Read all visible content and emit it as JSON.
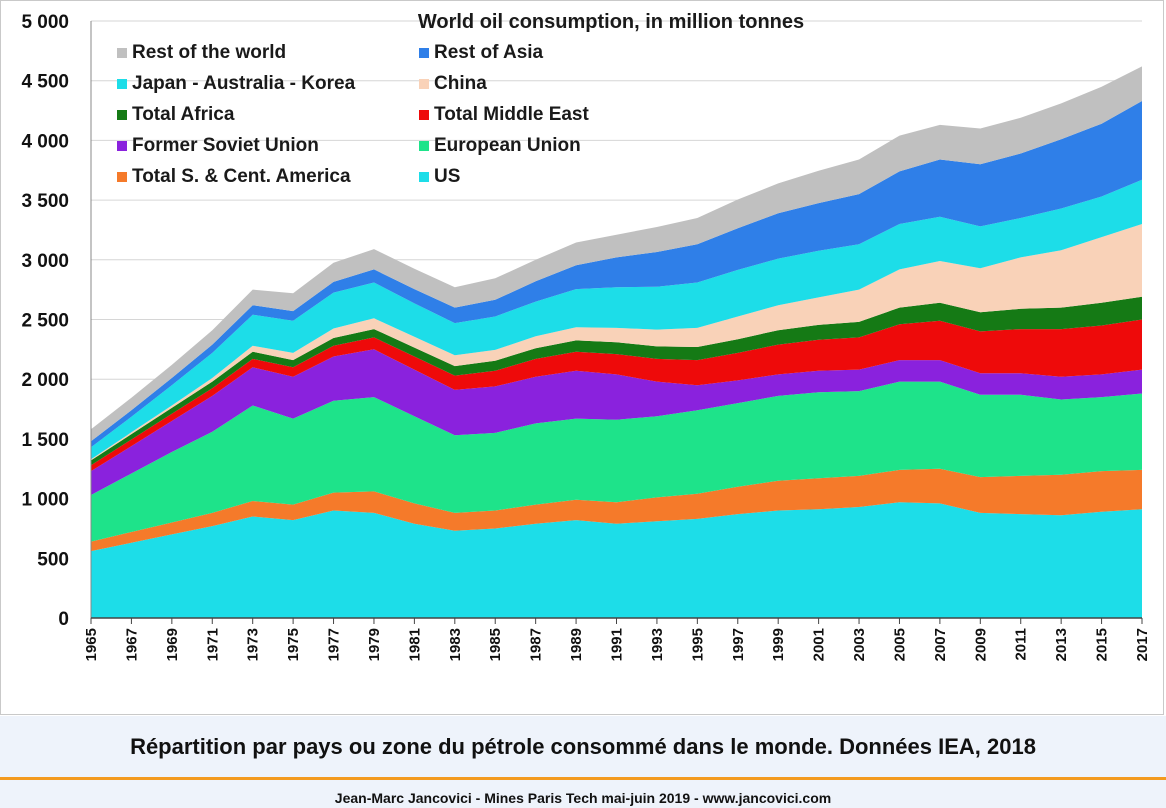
{
  "caption": "Répartition par pays ou zone du pétrole consommé dans le monde. Données IEA, 2018",
  "footer": "Jean-Marc Jancovici - Mines Paris Tech mai-juin 2019 - www.jancovici.com",
  "accent_color": "#f39a1e",
  "chart_data": {
    "type": "area",
    "stacked": true,
    "title": "World oil consumption, in million tonnes",
    "xlabel": "",
    "ylabel": "",
    "ylim": [
      0,
      5000
    ],
    "xlim": [
      1965,
      2017
    ],
    "y_ticks": [
      0,
      500,
      1000,
      1500,
      2000,
      2500,
      3000,
      3500,
      4000,
      4500,
      5000
    ],
    "y_tick_labels": [
      "0",
      "500",
      "1 000",
      "1 500",
      "2 000",
      "2 500",
      "3 000",
      "3 500",
      "4 000",
      "4 500",
      "5 000"
    ],
    "x_tick_labels": [
      "1965",
      "1967",
      "1969",
      "1971",
      "1973",
      "1975",
      "1977",
      "1979",
      "1981",
      "1983",
      "1985",
      "1987",
      "1989",
      "1991",
      "1993",
      "1995",
      "1997",
      "1999",
      "2001",
      "2003",
      "2005",
      "2007",
      "2009",
      "2011",
      "2013",
      "2015",
      "2017"
    ],
    "grid": true,
    "legend_position": "top-left",
    "x": [
      1965,
      1967,
      1969,
      1971,
      1973,
      1975,
      1977,
      1979,
      1981,
      1983,
      1985,
      1987,
      1989,
      1991,
      1993,
      1995,
      1997,
      1999,
      2001,
      2003,
      2005,
      2007,
      2009,
      2011,
      2013,
      2015,
      2017
    ],
    "series": [
      {
        "name": "US",
        "color": "#1ddde8",
        "values": [
          560,
          630,
          700,
          770,
          850,
          820,
          900,
          880,
          790,
          730,
          750,
          790,
          820,
          790,
          810,
          830,
          870,
          900,
          910,
          930,
          970,
          960,
          880,
          870,
          860,
          890,
          910
        ]
      },
      {
        "name": "Total S. & Cent. America",
        "color": "#f57a2a",
        "values": [
          80,
          90,
          100,
          110,
          130,
          130,
          150,
          180,
          170,
          150,
          150,
          160,
          170,
          180,
          200,
          210,
          230,
          250,
          260,
          260,
          270,
          290,
          300,
          320,
          340,
          340,
          330
        ]
      },
      {
        "name": "European Union",
        "color": "#1ee38a",
        "values": [
          390,
          490,
          590,
          680,
          800,
          720,
          770,
          790,
          730,
          650,
          650,
          680,
          680,
          690,
          680,
          700,
          700,
          710,
          720,
          710,
          740,
          730,
          690,
          680,
          630,
          620,
          640
        ]
      },
      {
        "name": "Former Soviet Union",
        "color": "#8a22dd",
        "values": [
          200,
          230,
          260,
          300,
          320,
          350,
          370,
          400,
          390,
          380,
          390,
          390,
          400,
          380,
          290,
          210,
          190,
          180,
          180,
          180,
          180,
          180,
          180,
          180,
          190,
          190,
          200
        ]
      },
      {
        "name": "Total Middle East",
        "color": "#ee0a0a",
        "values": [
          50,
          55,
          60,
          65,
          70,
          80,
          90,
          100,
          110,
          120,
          130,
          150,
          160,
          170,
          190,
          210,
          230,
          250,
          260,
          270,
          300,
          330,
          350,
          370,
          400,
          410,
          420
        ]
      },
      {
        "name": "Total Africa",
        "color": "#157a15",
        "values": [
          40,
          45,
          50,
          55,
          60,
          60,
          65,
          70,
          75,
          80,
          85,
          90,
          95,
          100,
          105,
          110,
          115,
          120,
          125,
          130,
          140,
          150,
          160,
          170,
          180,
          190,
          190
        ]
      },
      {
        "name": "China",
        "color": "#f9d2b8",
        "values": [
          10,
          15,
          20,
          30,
          50,
          60,
          80,
          90,
          90,
          90,
          90,
          100,
          110,
          120,
          140,
          160,
          190,
          210,
          230,
          270,
          320,
          350,
          370,
          430,
          480,
          550,
          610
        ]
      },
      {
        "name": "Japan - Australia - Korea",
        "color": "#1ddde8",
        "values": [
          100,
          130,
          170,
          210,
          260,
          270,
          300,
          300,
          280,
          270,
          280,
          290,
          320,
          340,
          360,
          380,
          390,
          390,
          390,
          380,
          380,
          370,
          350,
          330,
          350,
          340,
          370
        ]
      },
      {
        "name": "Rest of Asia",
        "color": "#2f7fe8",
        "values": [
          50,
          55,
          60,
          70,
          80,
          80,
          90,
          110,
          120,
          130,
          140,
          170,
          200,
          250,
          290,
          320,
          350,
          380,
          400,
          420,
          440,
          480,
          520,
          540,
          580,
          610,
          660
        ]
      },
      {
        "name": "Rest of the world",
        "color": "#c0c0c0",
        "values": [
          100,
          105,
          110,
          120,
          130,
          150,
          160,
          170,
          170,
          170,
          180,
          180,
          190,
          190,
          210,
          220,
          240,
          250,
          270,
          290,
          300,
          290,
          300,
          300,
          300,
          310,
          290
        ]
      }
    ],
    "legend_order": [
      "Rest of the world",
      "Rest of Asia",
      "Japan - Australia - Korea",
      "China",
      "Total Africa",
      "Total Middle East",
      "Former Soviet Union",
      "European Union",
      "Total S. & Cent. America",
      "US"
    ]
  }
}
